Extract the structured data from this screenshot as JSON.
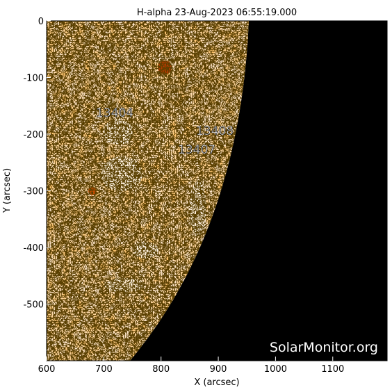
{
  "chart_data": {
    "type": "image",
    "title": "H-alpha 23-Aug-2023 06:55:19.000",
    "x_label": "X (arcsec)",
    "y_label": "Y (arcsec)",
    "xlim": [
      600,
      1195
    ],
    "ylim": [
      -600,
      0
    ],
    "xticks": [
      600,
      700,
      800,
      900,
      1000,
      1100
    ],
    "yticks": [
      0,
      -100,
      -200,
      -300,
      -400,
      -500
    ],
    "annotations": [
      "13404",
      "13408",
      "13407"
    ],
    "watermark": "SolarMonitor.org"
  }
}
